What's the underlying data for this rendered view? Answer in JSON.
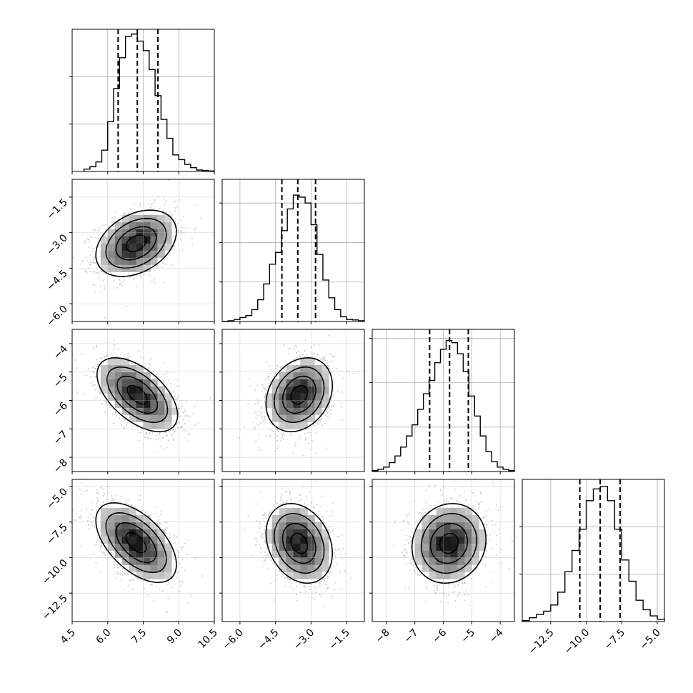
{
  "chart_data": {
    "type": "corner",
    "n_params": 4,
    "grid": true,
    "quantiles": [
      0.16,
      0.5,
      0.84
    ],
    "params": [
      {
        "range": [
          4.5,
          10.5
        ],
        "ticks": [
          4.5,
          6.0,
          7.5,
          9.0,
          10.5
        ],
        "tick_labels": [
          "4.5",
          "6.0",
          "7.5",
          "9.0",
          "10.5"
        ],
        "quantile_values": [
          6.44,
          7.25,
          8.12
        ],
        "hist_bins": [
          5.0,
          5.25,
          5.5,
          5.75,
          6.0,
          6.25,
          6.5,
          6.75,
          7.0,
          7.25,
          7.5,
          7.75,
          8.0,
          8.25,
          8.5,
          8.75,
          9.0,
          9.25,
          9.5,
          9.75,
          10.0,
          10.25,
          10.5
        ],
        "hist_counts": [
          0.05,
          0.1,
          0.2,
          0.45,
          1.05,
          1.75,
          2.4,
          2.85,
          2.9,
          2.75,
          2.55,
          2.15,
          1.6,
          1.1,
          0.7,
          0.35,
          0.25,
          0.15,
          0.08,
          0.03,
          0.02,
          0.01
        ],
        "hist_ylim": [
          0,
          3.0
        ],
        "hist_yticks": [
          1,
          2
        ]
      },
      {
        "range": [
          -6.75,
          -0.75
        ],
        "ticks": [
          -6.0,
          -4.5,
          -3.0,
          -1.5
        ],
        "tick_labels": [
          "−6.0",
          "−4.5",
          "−3.0",
          "−1.5"
        ],
        "quantile_values": [
          -4.23,
          -3.56,
          -2.81
        ],
        "hist_bins": [
          -6.75,
          -6.5,
          -6.25,
          -6.0,
          -5.75,
          -5.5,
          -5.25,
          -5.0,
          -4.75,
          -4.5,
          -4.25,
          -4.0,
          -3.75,
          -3.5,
          -3.25,
          -3.0,
          -2.75,
          -2.5,
          -2.25,
          -2.0,
          -1.75,
          -1.5,
          -1.25,
          -1.0,
          -0.75
        ],
        "hist_counts": [
          0.0,
          0.02,
          0.05,
          0.1,
          0.15,
          0.3,
          0.55,
          0.95,
          1.45,
          1.75,
          2.3,
          2.85,
          3.2,
          3.15,
          3.0,
          2.45,
          1.7,
          1.05,
          0.6,
          0.3,
          0.12,
          0.05,
          0.04,
          0.02
        ],
        "hist_ylim": [
          0,
          3.6
        ],
        "hist_yticks": [
          1,
          2,
          3
        ]
      },
      {
        "range": [
          -8.5,
          -3.5
        ],
        "ticks": [
          -8,
          -7,
          -6,
          -5,
          -4
        ],
        "tick_labels": [
          "−8",
          "−7",
          "−6",
          "−5",
          "−4"
        ],
        "quantile_values": [
          -6.48,
          -5.78,
          -5.12
        ],
        "hist_bins": [
          -8.5,
          -8.3,
          -8.1,
          -7.9,
          -7.7,
          -7.5,
          -7.3,
          -7.1,
          -6.9,
          -6.7,
          -6.5,
          -6.3,
          -6.1,
          -5.9,
          -5.7,
          -5.5,
          -5.3,
          -5.1,
          -4.9,
          -4.7,
          -4.5,
          -4.3,
          -4.1,
          -3.9,
          -3.7,
          -3.5
        ],
        "hist_counts": [
          0.02,
          0.05,
          0.1,
          0.2,
          0.35,
          0.55,
          0.8,
          1.05,
          1.4,
          1.75,
          2.05,
          2.45,
          2.75,
          2.95,
          2.9,
          2.65,
          2.25,
          1.7,
          1.25,
          0.8,
          0.45,
          0.22,
          0.1,
          0.05,
          0.02
        ],
        "hist_ylim": [
          0,
          3.2
        ],
        "hist_yticks": [
          1,
          2,
          3
        ]
      },
      {
        "range": [
          -14.5,
          -4.5
        ],
        "ticks": [
          -12.5,
          -10.0,
          -7.5,
          -5.0
        ],
        "tick_labels": [
          "−12.5",
          "−10.0",
          "−7.5",
          "−5.0"
        ],
        "quantile_values": [
          -10.45,
          -9.02,
          -7.62
        ],
        "hist_bins": [
          -14.5,
          -14.0,
          -13.5,
          -13.0,
          -12.5,
          -12.0,
          -11.5,
          -11.0,
          -10.5,
          -10.0,
          -9.5,
          -9.0,
          -8.5,
          -8.0,
          -7.5,
          -7.0,
          -6.5,
          -6.0,
          -5.5,
          -5.0,
          -4.5
        ],
        "hist_counts": [
          0.02,
          0.08,
          0.15,
          0.22,
          0.35,
          0.62,
          1.05,
          1.5,
          1.95,
          2.55,
          2.8,
          2.85,
          2.55,
          1.95,
          1.3,
          0.85,
          0.45,
          0.25,
          0.12,
          0.05
        ],
        "hist_ylim": [
          0,
          3.0
        ],
        "hist_yticks": [
          1,
          2
        ]
      }
    ],
    "pairs": [
      {
        "x": 0,
        "y": 1,
        "mean": [
          7.2,
          -3.45
        ],
        "sd": [
          0.85,
          0.7
        ],
        "rho": 0.35
      },
      {
        "x": 0,
        "y": 2,
        "mean": [
          7.25,
          -5.8
        ],
        "sd": [
          0.85,
          0.65
        ],
        "rho": -0.55
      },
      {
        "x": 1,
        "y": 2,
        "mean": [
          -3.5,
          -5.8
        ],
        "sd": [
          0.7,
          0.65
        ],
        "rho": 0.25
      },
      {
        "x": 0,
        "y": 3,
        "mean": [
          7.2,
          -8.95
        ],
        "sd": [
          0.85,
          1.4
        ],
        "rho": -0.55
      },
      {
        "x": 1,
        "y": 3,
        "mean": [
          -3.5,
          -9.0
        ],
        "sd": [
          0.7,
          1.4
        ],
        "rho": -0.25
      },
      {
        "x": 2,
        "y": 3,
        "mean": [
          -5.8,
          -9.0
        ],
        "sd": [
          0.65,
          1.4
        ],
        "rho": 0.1
      }
    ],
    "contour_levels_sigma": [
      0.5,
      1.0,
      1.5,
      2.0
    ]
  }
}
